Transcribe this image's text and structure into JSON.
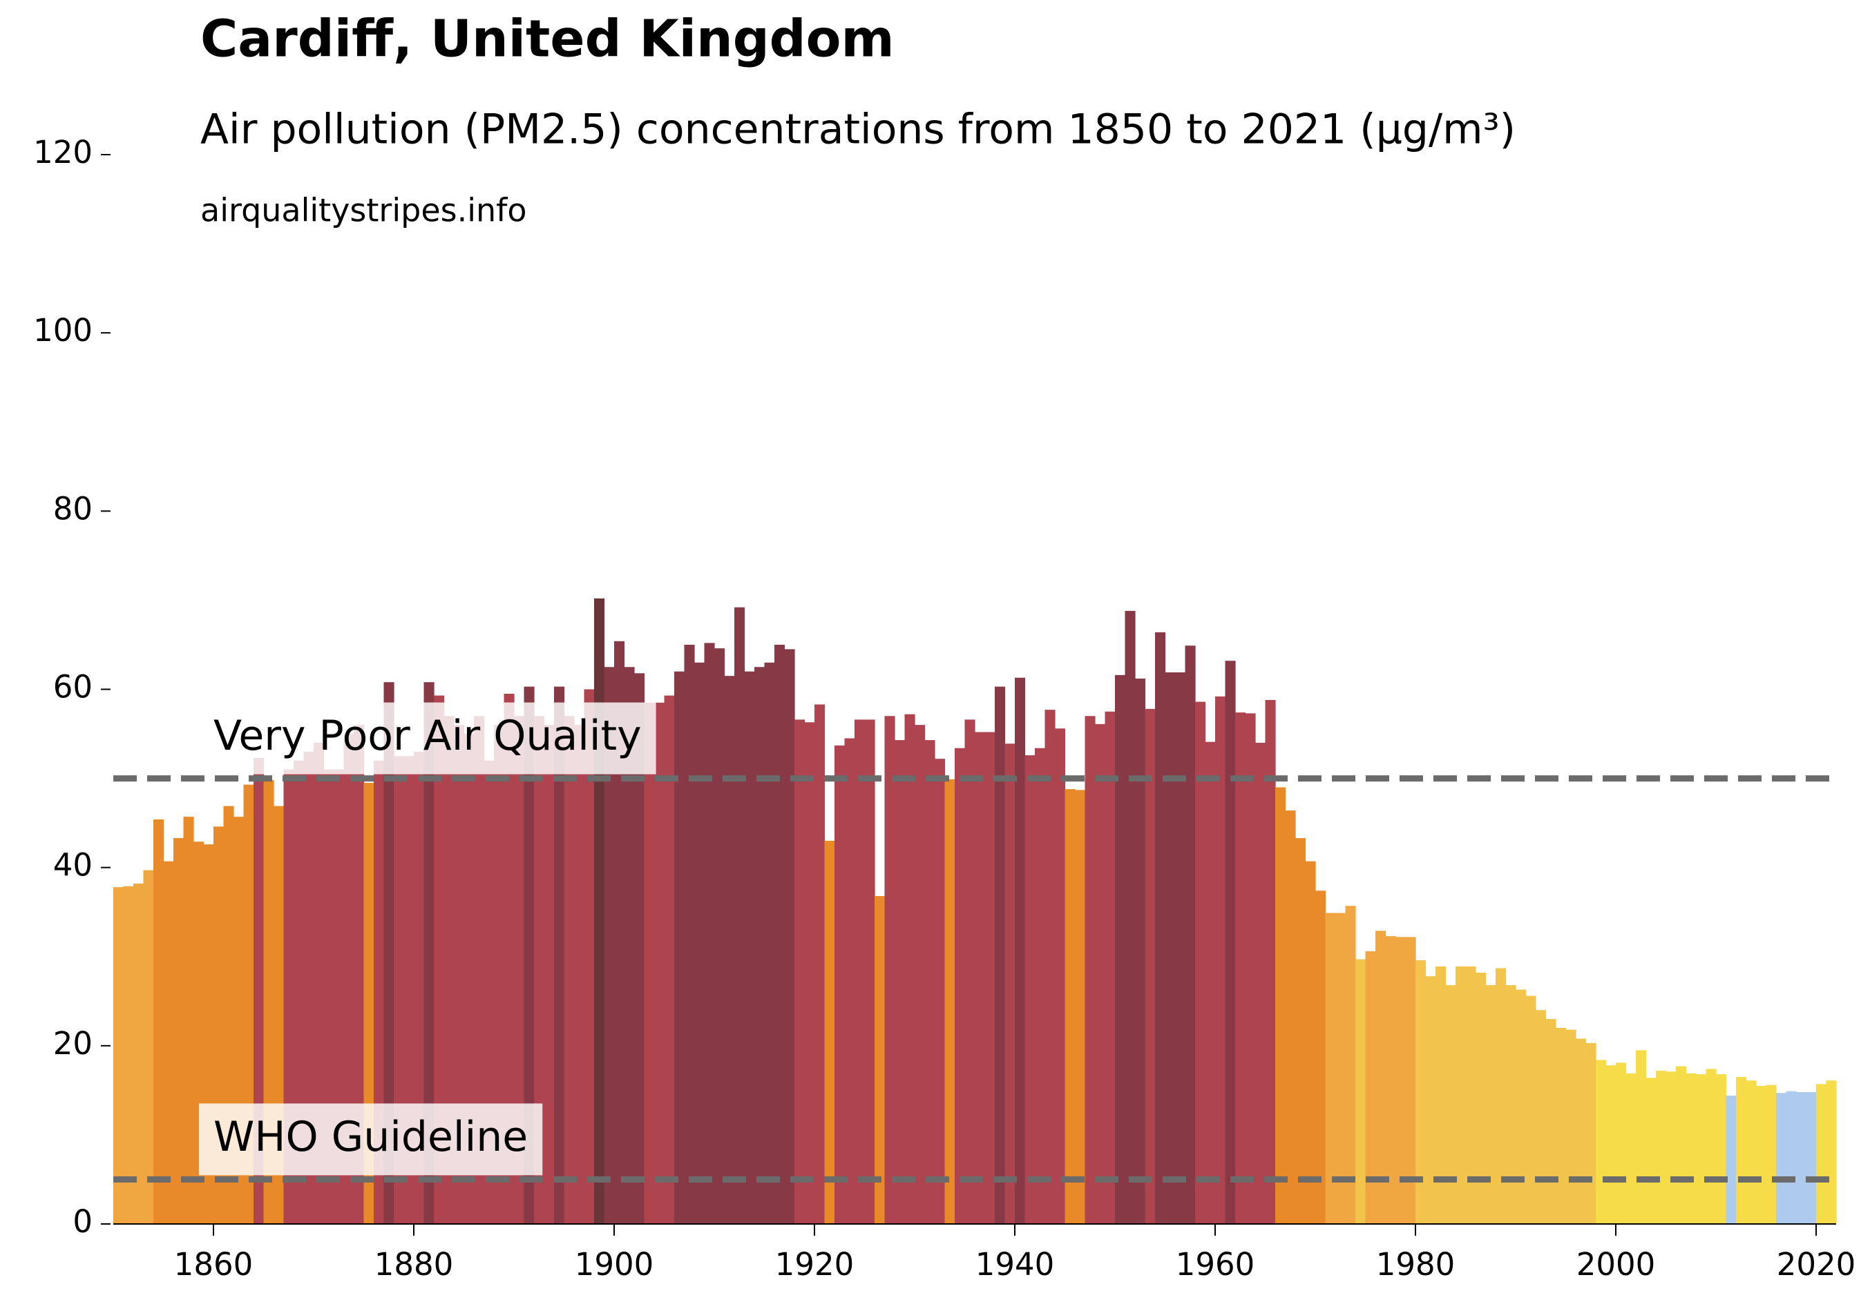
{
  "chart_data": {
    "type": "bar",
    "title": "Cardiff, United Kingdom",
    "subtitle": "Air pollution (PM2.5) concentrations from 1850 to 2021 (µg/m³)",
    "source": "airqualitystripes.info",
    "x": [
      1850,
      1851,
      1852,
      1853,
      1854,
      1855,
      1856,
      1857,
      1858,
      1859,
      1860,
      1861,
      1862,
      1863,
      1864,
      1865,
      1866,
      1867,
      1868,
      1869,
      1870,
      1871,
      1872,
      1873,
      1874,
      1875,
      1876,
      1877,
      1878,
      1879,
      1880,
      1881,
      1882,
      1883,
      1884,
      1885,
      1886,
      1887,
      1888,
      1889,
      1890,
      1891,
      1892,
      1893,
      1894,
      1895,
      1896,
      1897,
      1898,
      1899,
      1900,
      1901,
      1902,
      1903,
      1904,
      1905,
      1906,
      1907,
      1908,
      1909,
      1910,
      1911,
      1912,
      1913,
      1914,
      1915,
      1916,
      1917,
      1918,
      1919,
      1920,
      1921,
      1922,
      1923,
      1924,
      1925,
      1926,
      1927,
      1928,
      1929,
      1930,
      1931,
      1932,
      1933,
      1934,
      1935,
      1936,
      1937,
      1938,
      1939,
      1940,
      1941,
      1942,
      1943,
      1944,
      1945,
      1946,
      1947,
      1948,
      1949,
      1950,
      1951,
      1952,
      1953,
      1954,
      1955,
      1956,
      1957,
      1958,
      1959,
      1960,
      1961,
      1962,
      1963,
      1964,
      1965,
      1966,
      1967,
      1968,
      1969,
      1970,
      1971,
      1972,
      1973,
      1974,
      1975,
      1976,
      1977,
      1978,
      1979,
      1980,
      1981,
      1982,
      1983,
      1984,
      1985,
      1986,
      1987,
      1988,
      1989,
      1990,
      1991,
      1992,
      1993,
      1994,
      1995,
      1996,
      1997,
      1998,
      1999,
      2000,
      2001,
      2002,
      2003,
      2004,
      2005,
      2006,
      2007,
      2008,
      2009,
      2010,
      2011,
      2012,
      2013,
      2014,
      2015,
      2016,
      2017,
      2018,
      2019,
      2020,
      2021
    ],
    "values": [
      37.8,
      37.9,
      38.2,
      39.7,
      45.4,
      40.7,
      43.3,
      45.7,
      42.9,
      42.6,
      44.6,
      46.9,
      45.7,
      49.3,
      52.3,
      49.8,
      46.9,
      51,
      52,
      53,
      54,
      51,
      51,
      55,
      56,
      49.5,
      52,
      60.8,
      52.5,
      52.5,
      53,
      60.8,
      59.3,
      57,
      56,
      55,
      57,
      52,
      56,
      59.5,
      57,
      60.3,
      57,
      56,
      60.3,
      57,
      56,
      60,
      70.2,
      62.5,
      65.4,
      62.5,
      61.8,
      58.5,
      58.5,
      59.3,
      62,
      65,
      63,
      65.2,
      64.6,
      61.5,
      69.2,
      62,
      62.5,
      63,
      65,
      64.5,
      56.6,
      56.3,
      58.3,
      43,
      53.7,
      54.5,
      56.6,
      56.6,
      36.8,
      57,
      54.3,
      57.2,
      56,
      54.3,
      52.2,
      49.9,
      53.4,
      56.6,
      55.2,
      55.2,
      60.3,
      53.9,
      61.3,
      52.6,
      53.4,
      57.7,
      55.6,
      48.8,
      48.7,
      57,
      56.1,
      57.5,
      61.6,
      68.8,
      61.2,
      57.8,
      66.4,
      61.9,
      61.9,
      64.9,
      58.6,
      54.1,
      59.2,
      63.2,
      57.4,
      57.3,
      54,
      58.8,
      49,
      46.4,
      43.3,
      40.7,
      37.4,
      34.9,
      34.9,
      35.7,
      29.7,
      30.6,
      32.9,
      32.3,
      32.2,
      32.2,
      29.6,
      27.8,
      28.9,
      26.8,
      28.9,
      28.9,
      28.2,
      26.8,
      28.7,
      26.8,
      26.3,
      25.6,
      24,
      23,
      22,
      21.8,
      20.8,
      20.3,
      18.4,
      17.8,
      18.1,
      16.9,
      19.5,
      16.4,
      17.2,
      17.1,
      17.7,
      16.9,
      16.8,
      17.4,
      16.8,
      14.4,
      16.5,
      16.1,
      15.5,
      15.6,
      14.7,
      14.9,
      14.8,
      14.8,
      15.7,
      16.1
    ],
    "colors": [
      "#f0a742",
      "#f0a742",
      "#f0a742",
      "#f0a742",
      "#e8892a",
      "#e8892a",
      "#e8892a",
      "#e8892a",
      "#e8892a",
      "#e8892a",
      "#e8892a",
      "#e8892a",
      "#e8892a",
      "#e8892a",
      "#ad4450",
      "#e8892a",
      "#e8892a",
      "#ad4450",
      "#ad4450",
      "#ad4450",
      "#ad4450",
      "#ad4450",
      "#ad4450",
      "#ad4450",
      "#ad4450",
      "#e8892a",
      "#ad4450",
      "#873a45",
      "#ad4450",
      "#ad4450",
      "#ad4450",
      "#873a45",
      "#ad4450",
      "#ad4450",
      "#ad4450",
      "#ad4450",
      "#ad4450",
      "#ad4450",
      "#ad4450",
      "#ad4450",
      "#ad4450",
      "#873a45",
      "#ad4450",
      "#ad4450",
      "#873a45",
      "#ad4450",
      "#ad4450",
      "#ad4450",
      "#6b3438",
      "#873a45",
      "#873a45",
      "#873a45",
      "#873a45",
      "#ad4450",
      "#ad4450",
      "#ad4450",
      "#873a45",
      "#873a45",
      "#873a45",
      "#873a45",
      "#873a45",
      "#873a45",
      "#873a45",
      "#873a45",
      "#873a45",
      "#873a45",
      "#873a45",
      "#873a45",
      "#ad4450",
      "#ad4450",
      "#ad4450",
      "#e8892a",
      "#ad4450",
      "#ad4450",
      "#ad4450",
      "#ad4450",
      "#e8892a",
      "#ad4450",
      "#ad4450",
      "#ad4450",
      "#ad4450",
      "#ad4450",
      "#ad4450",
      "#e8892a",
      "#ad4450",
      "#ad4450",
      "#ad4450",
      "#ad4450",
      "#873a45",
      "#ad4450",
      "#873a45",
      "#ad4450",
      "#ad4450",
      "#ad4450",
      "#ad4450",
      "#e8892a",
      "#e8892a",
      "#ad4450",
      "#ad4450",
      "#ad4450",
      "#873a45",
      "#873a45",
      "#873a45",
      "#ad4450",
      "#873a45",
      "#873a45",
      "#873a45",
      "#873a45",
      "#ad4450",
      "#ad4450",
      "#ad4450",
      "#873a45",
      "#ad4450",
      "#ad4450",
      "#ad4450",
      "#ad4450",
      "#e8892a",
      "#e8892a",
      "#e8892a",
      "#e8892a",
      "#e8892a",
      "#f0a742",
      "#f0a742",
      "#f0a742",
      "#f2c44c",
      "#f0a742",
      "#f0a742",
      "#f0a742",
      "#f0a742",
      "#f0a742",
      "#f2c44c",
      "#f2c44c",
      "#f2c44c",
      "#f2c44c",
      "#f2c44c",
      "#f2c44c",
      "#f2c44c",
      "#f2c44c",
      "#f2c44c",
      "#f2c44c",
      "#f2c44c",
      "#f2c44c",
      "#f2c44c",
      "#f2c44c",
      "#f2c44c",
      "#f2c44c",
      "#f2c44c",
      "#f2c44c",
      "#f7dc4a",
      "#f7dc4a",
      "#f7dc4a",
      "#f7dc4a",
      "#f7dc4a",
      "#f7dc4a",
      "#f7dc4a",
      "#f7dc4a",
      "#f7dc4a",
      "#f7dc4a",
      "#f7dc4a",
      "#f7dc4a",
      "#f7dc4a",
      "#aecbed",
      "#f7dc4a",
      "#f7dc4a",
      "#f7dc4a",
      "#f7dc4a",
      "#aecbed",
      "#aecbed",
      "#aecbed",
      "#aecbed",
      "#f7dc4a",
      "#f7dc4a"
    ],
    "xlim": [
      1850,
      2022
    ],
    "ylim": [
      0,
      120
    ],
    "xticks": [
      1860,
      1880,
      1900,
      1920,
      1940,
      1960,
      1980,
      2000,
      2020
    ],
    "yticks": [
      0,
      20,
      40,
      60,
      80,
      100,
      120
    ],
    "annotations": [
      {
        "text": "Very Poor Air Quality",
        "value": 50
      },
      {
        "text": "WHO Guideline",
        "value": 5
      }
    ],
    "reference_line_color": "#6b6b6b"
  }
}
